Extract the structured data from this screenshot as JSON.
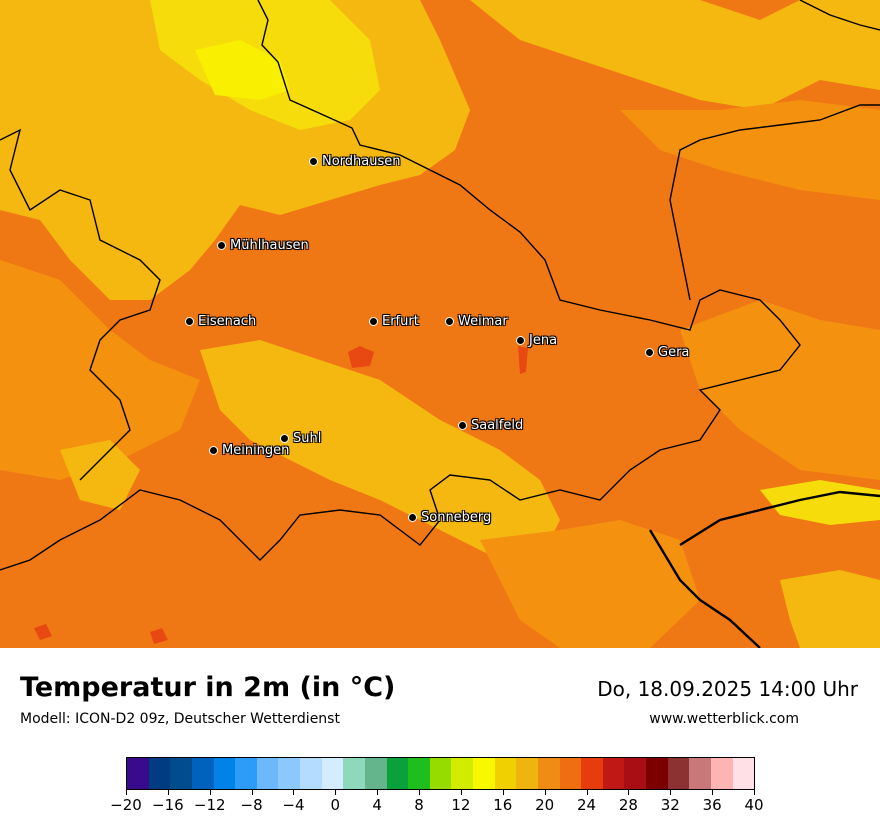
{
  "title": "Temperatur in 2m (in °C)",
  "subtitle": "Modell: ICON-D2 09z, Deutscher Wetterdienst",
  "datetime": "Do, 18.09.2025 14:00 Uhr",
  "website": "www.wetterblick.com",
  "colors": {
    "base_orange": "#f07814",
    "mid_orange": "#f4920f",
    "amber": "#f5b810",
    "yellow": "#f5dc0a",
    "bright_yellow": "#f8f000",
    "deep_orange": "#e84812",
    "border": "#000000"
  },
  "cities": [
    {
      "name": "Nordhausen"
    },
    {
      "name": "Mühlhausen"
    },
    {
      "name": "Eisenach"
    },
    {
      "name": "Erfurt"
    },
    {
      "name": "Weimar"
    },
    {
      "name": "Jena"
    },
    {
      "name": "Gera"
    },
    {
      "name": "Saalfeld"
    },
    {
      "name": "Suhl"
    },
    {
      "name": "Meiningen"
    },
    {
      "name": "Sonneberg"
    }
  ],
  "legend": {
    "unit": "°C",
    "range": [
      -20,
      40
    ],
    "colors": [
      "#3a0a8c",
      "#003c82",
      "#004c8c",
      "#0062bc",
      "#0082e6",
      "#2c9cf8",
      "#6cb8fa",
      "#8cc8fc",
      "#b4dcfe",
      "#d4ecff",
      "#8ed8bc",
      "#64b48c",
      "#0aa03c",
      "#1ebe1e",
      "#96dc00",
      "#d2ec00",
      "#f8f800",
      "#f0d000",
      "#f0b410",
      "#f08c14",
      "#f06e12",
      "#e63c0e",
      "#c01814",
      "#a80e14",
      "#7c0000",
      "#8c3232",
      "#c87878",
      "#ffb4b4",
      "#ffe0e6"
    ],
    "tick_labels": [
      "−20",
      "−16",
      "−12",
      "−8",
      "−4",
      "0",
      "4",
      "8",
      "12",
      "16",
      "20",
      "24",
      "28",
      "32",
      "36",
      "40"
    ]
  }
}
